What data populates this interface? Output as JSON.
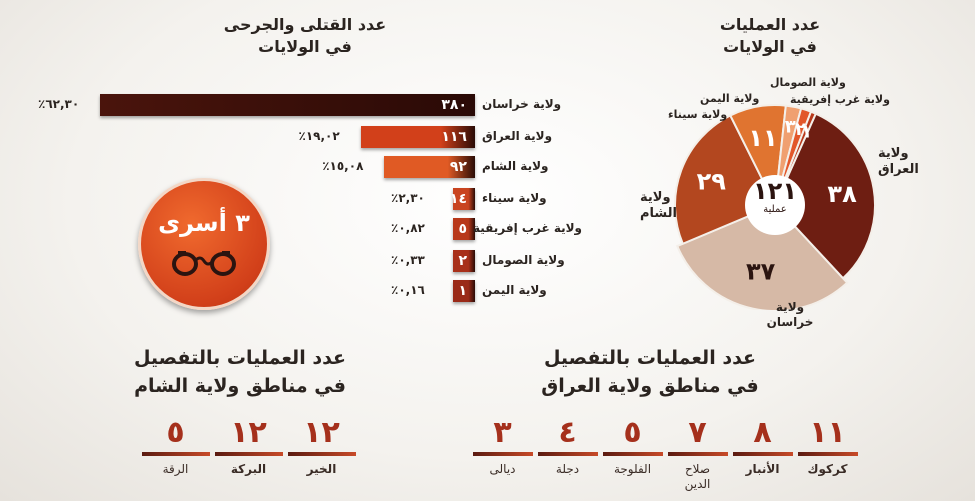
{
  "left_title": {
    "line1": "عدد القتلى والجرحى",
    "line2": "في الولايات"
  },
  "right_title": {
    "line1": "عدد العمليات",
    "line2": "في الولايات"
  },
  "badge": {
    "text": "٣ أسرى"
  },
  "chart_data": [
    {
      "type": "bar",
      "categories": [
        "ولاية خراسان",
        "ولاية العراق",
        "ولاية الشام",
        "ولاية سيناء",
        "ولاية غرب إفريقية",
        "ولاية الصومال",
        "ولاية اليمن"
      ],
      "values": [
        380,
        116,
        92,
        14,
        5,
        2,
        1
      ],
      "value_labels": [
        "٣٨٠",
        "١١٦",
        "٩٢",
        "١٤",
        "٥",
        "٢",
        "١"
      ],
      "percent_labels": [
        "٦٢,٣٠٪",
        "١٩,٠٢٪",
        "١٥,٠٨٪",
        "٢,٣٠٪",
        "٠,٨٢٪",
        "٠,٣٣٪",
        "٠,١٦٪"
      ],
      "colors": [
        "#4a140c",
        "#d2401a",
        "#e05a24",
        "#c94420",
        "#b8381a",
        "#a8301a",
        "#9a2a18"
      ]
    },
    {
      "type": "pie",
      "title_center": {
        "value": "١٢١",
        "unit": "عملية"
      },
      "slices": [
        {
          "label": "ولاية العراق",
          "value": 38,
          "value_label": "٣٨",
          "color": "#6e1e12"
        },
        {
          "label": "ولاية خراسان",
          "value": 37,
          "value_label": "٣٧",
          "color": "#d6b9a6"
        },
        {
          "label": "ولاية الشام",
          "value": 29,
          "value_label": "٢٩",
          "color": "#b3471f"
        },
        {
          "label": "ولاية سيناء",
          "value": 11,
          "value_label": "١١",
          "color": "#e07430"
        },
        {
          "label": "ولاية اليمن",
          "value": 3,
          "value_label": "٣",
          "color": "#f0a070"
        },
        {
          "label": "ولاية الصومال",
          "value": 2,
          "value_label": "٢",
          "color": "#e2572a"
        },
        {
          "label": "ولاية غرب إفريقية",
          "value": 1,
          "value_label": "١",
          "color": "#b8381a"
        }
      ],
      "outer_labels": {
        "iraq": "ولاية\nالعراق",
        "sham": "ولاية\nالشام",
        "khorasan": "ولاية\nخراسان",
        "sinai": "ولاية سيناء",
        "yemen": "ولاية اليمن",
        "somalia": "ولاية الصومال",
        "westafrica": "ولاية غرب إفريقية"
      }
    },
    {
      "type": "table",
      "title": {
        "line1": "عدد العمليات بالتفصيل",
        "line2": "في مناطق ولاية العراق"
      },
      "cells": [
        {
          "value": "١١",
          "label": "كركوك",
          "bold": true
        },
        {
          "value": "٨",
          "label": "الأنبار",
          "bold": true
        },
        {
          "value": "٧",
          "label": "صلاح\nالدين",
          "bold": false
        },
        {
          "value": "٥",
          "label": "الفلوجة",
          "bold": false
        },
        {
          "value": "٤",
          "label": "دجلة",
          "bold": false
        },
        {
          "value": "٣",
          "label": "ديالى",
          "bold": false
        }
      ]
    },
    {
      "type": "table",
      "title": {
        "line1": "عدد العمليات بالتفصيل",
        "line2": "في مناطق ولاية الشام"
      },
      "cells": [
        {
          "value": "١٢",
          "label": "الخير",
          "bold": true
        },
        {
          "value": "١٢",
          "label": "البركة",
          "bold": true
        },
        {
          "value": "٥",
          "label": "الرقة",
          "bold": false
        }
      ]
    }
  ]
}
